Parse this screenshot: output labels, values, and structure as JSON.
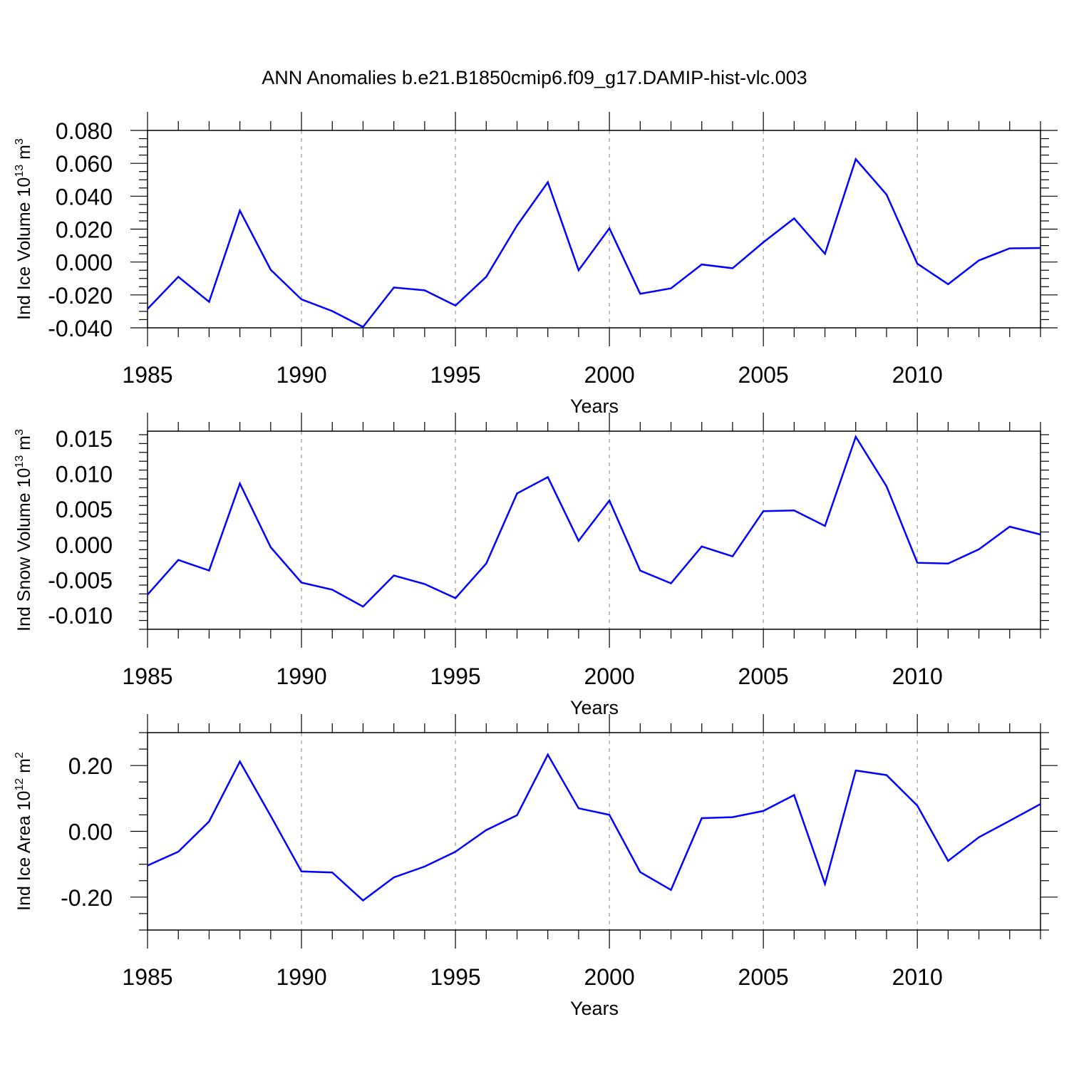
{
  "page_title": "ANN Anomalies b.e21.B1850cmip6.f09_g17.DAMIP-hist-vlc.003",
  "line_color": "#0000ff",
  "chart_data": [
    {
      "type": "line",
      "ylabel": "Ind Ice Volume 10",
      "ylabel_exp": "13",
      "ylabel_unit": "m",
      "ylabel_unit_exp": "3",
      "xlabel": "Years",
      "xlim": [
        1985,
        2014
      ],
      "ylim": [
        -0.04,
        0.08
      ],
      "y_ticks": [
        "0.080",
        "0.060",
        "0.040",
        "0.020",
        "0.000",
        "-0.020",
        "-0.040"
      ],
      "y_tick_values": [
        0.08,
        0.06,
        0.04,
        0.02,
        0.0,
        -0.02,
        -0.04
      ],
      "x_ticks": [
        "1985",
        "1990",
        "1995",
        "2000",
        "2005",
        "2010"
      ],
      "grid": "vertical dashed at major x ticks",
      "series": [
        {
          "x": [
            1985,
            1986,
            1987,
            1988,
            1989,
            1990,
            1991,
            1992,
            1993,
            1994,
            1995,
            1996,
            1997,
            1998,
            1999,
            2000,
            2001,
            2002,
            2003,
            2004,
            2005,
            2006,
            2007,
            2008,
            2009,
            2010,
            2011,
            2012,
            2013,
            2014
          ],
          "values": [
            -0.0285,
            -0.009,
            -0.0242,
            0.0312,
            -0.0047,
            -0.0227,
            -0.0298,
            -0.0395,
            -0.0155,
            -0.0172,
            -0.0265,
            -0.009,
            0.0222,
            0.0485,
            -0.005,
            0.0205,
            -0.0193,
            -0.016,
            -0.0015,
            -0.0038,
            0.012,
            0.0265,
            0.005,
            0.0625,
            0.041,
            -0.001,
            -0.0135,
            0.001,
            0.0083,
            0.0085
          ]
        }
      ]
    },
    {
      "type": "line",
      "ylabel": "Ind Snow Volume 10",
      "ylabel_exp": "13",
      "ylabel_unit": "m",
      "ylabel_unit_exp": "3",
      "xlabel": "Years",
      "xlim": [
        1985,
        2014
      ],
      "ylim": [
        -0.012,
        0.016
      ],
      "y_ticks": [
        "0.015",
        "0.010",
        "0.005",
        "0.000",
        "-0.005",
        "-0.010"
      ],
      "y_tick_values": [
        0.015,
        0.01,
        0.005,
        0.0,
        -0.005,
        -0.01
      ],
      "x_ticks": [
        "1985",
        "1990",
        "1995",
        "2000",
        "2005",
        "2010"
      ],
      "grid": "vertical dashed at major x ticks",
      "series": [
        {
          "x": [
            1985,
            1986,
            1987,
            1988,
            1989,
            1990,
            1991,
            1992,
            1993,
            1994,
            1995,
            1996,
            1997,
            1998,
            1999,
            2000,
            2001,
            2002,
            2003,
            2004,
            2005,
            2006,
            2007,
            2008,
            2009,
            2010,
            2011,
            2012,
            2013,
            2014
          ],
          "values": [
            -0.0071,
            -0.0022,
            -0.0037,
            0.0086,
            -0.0004,
            -0.0054,
            -0.0064,
            -0.0088,
            -0.0044,
            -0.0056,
            -0.0076,
            -0.0027,
            0.0072,
            0.0095,
            0.0005,
            0.0062,
            -0.0037,
            -0.0055,
            -0.0003,
            -0.0017,
            0.0047,
            0.0048,
            0.0026,
            0.0152,
            0.0082,
            -0.0026,
            -0.0027,
            -0.0007,
            0.0025,
            0.0014
          ]
        }
      ]
    },
    {
      "type": "line",
      "ylabel": "Ind Ice Area 10",
      "ylabel_exp": "12",
      "ylabel_unit": "m",
      "ylabel_unit_exp": "2",
      "xlabel": "Years",
      "xlim": [
        1985,
        2014
      ],
      "ylim": [
        -0.3,
        0.3
      ],
      "y_ticks": [
        "0.20",
        "0.00",
        "-0.20"
      ],
      "y_tick_values": [
        0.2,
        0.0,
        -0.2
      ],
      "x_ticks": [
        "1985",
        "1990",
        "1995",
        "2000",
        "2005",
        "2010"
      ],
      "grid": "vertical dashed at major x ticks",
      "series": [
        {
          "x": [
            1985,
            1986,
            1987,
            1988,
            1989,
            1990,
            1991,
            1992,
            1993,
            1994,
            1995,
            1996,
            1997,
            1998,
            1999,
            2000,
            2001,
            2002,
            2003,
            2004,
            2005,
            2006,
            2007,
            2008,
            2009,
            2010,
            2011,
            2012,
            2013,
            2014
          ],
          "values": [
            -0.104,
            -0.062,
            0.03,
            0.212,
            0.047,
            -0.122,
            -0.125,
            -0.21,
            -0.14,
            -0.107,
            -0.062,
            0.004,
            0.049,
            0.233,
            0.07,
            0.05,
            -0.124,
            -0.178,
            0.04,
            0.043,
            0.062,
            0.11,
            -0.16,
            0.185,
            0.171,
            0.078,
            -0.09,
            -0.018,
            0.032,
            0.083
          ]
        }
      ]
    }
  ]
}
